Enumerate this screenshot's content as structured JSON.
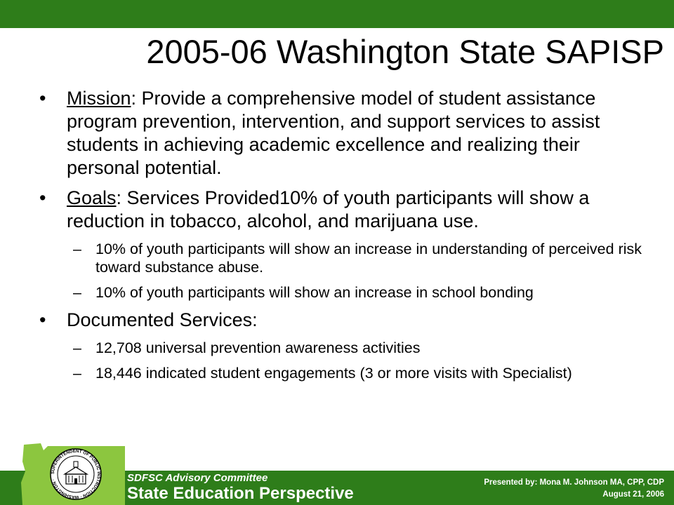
{
  "slide": {
    "title": "2005-06 Washington State SAPISP",
    "bullets": [
      {
        "marker": "•",
        "label": "Mission",
        "text": ": Provide a comprehensive model of student assistance program prevention, intervention, and support services to assist students in achieving academic excellence and realizing their personal potential."
      },
      {
        "marker": "•",
        "label": "Goals",
        "text": ": Services Provided10% of youth participants will show a reduction in tobacco, alcohol, and marijuana use.",
        "subs": [
          "10% of youth participants will show an increase in understanding of perceived risk toward substance abuse.",
          "10% of youth participants will show an increase in school bonding"
        ]
      },
      {
        "marker": "•",
        "text": "Documented Services:",
        "subs": [
          "12,708 universal prevention awareness activities",
          "18,446 indicated student engagements (3 or more visits with Specialist)"
        ]
      }
    ],
    "sub_marker": "–"
  },
  "footer": {
    "committee": "SDFSC Advisory Committee",
    "perspective": "State Education Perspective",
    "presenter": "Presented by: Mona M. Johnson MA, CPP, CDP",
    "date": "August 21, 2006",
    "seal_text": "SUPERINTENDENT OF PUBLIC INSTRUCTION · WASHINGTON ·",
    "seal_icon": "state-seal-icon",
    "map_icon": "washington-map-icon"
  },
  "colors": {
    "band_green": "#2e7d1a",
    "map_green": "#8cc63f",
    "text": "#000000"
  }
}
